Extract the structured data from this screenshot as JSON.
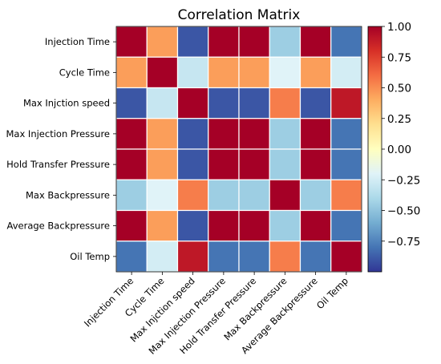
{
  "chart_data": {
    "type": "heatmap",
    "title": "Correlation Matrix",
    "labels": [
      "Injection Time",
      "Cycle Time",
      "Max Injction speed",
      "Max Injection Pressure",
      "Hold Transfer Pressure",
      "Max Backpressure",
      "Average Backpressure",
      "Oil Temp"
    ],
    "matrix": [
      [
        1.0,
        0.45,
        -0.9,
        1.0,
        1.0,
        -0.45,
        1.0,
        -0.8
      ],
      [
        0.45,
        1.0,
        -0.3,
        0.45,
        0.45,
        -0.2,
        0.45,
        -0.25
      ],
      [
        -0.9,
        -0.3,
        1.0,
        -0.9,
        -0.9,
        0.55,
        -0.9,
        0.9
      ],
      [
        1.0,
        0.45,
        -0.9,
        1.0,
        1.0,
        -0.45,
        1.0,
        -0.8
      ],
      [
        1.0,
        0.45,
        -0.9,
        1.0,
        1.0,
        -0.45,
        1.0,
        -0.8
      ],
      [
        -0.45,
        -0.2,
        0.55,
        -0.45,
        -0.45,
        1.0,
        -0.45,
        0.55
      ],
      [
        1.0,
        0.45,
        -0.9,
        1.0,
        1.0,
        -0.45,
        1.0,
        -0.8
      ],
      [
        -0.8,
        -0.25,
        0.9,
        -0.8,
        -0.8,
        0.55,
        -0.8,
        1.0
      ]
    ],
    "colorbar": {
      "colormap": "RdYlBu_r",
      "range": [
        -1.0,
        1.0
      ],
      "ticks": [
        1.0,
        0.75,
        0.5,
        0.25,
        0.0,
        -0.25,
        -0.5,
        -0.75
      ],
      "tick_labels": [
        "1.00",
        "0.75",
        "0.50",
        "0.25",
        "0.00",
        "−0.25",
        "−0.50",
        "−0.75"
      ]
    },
    "grid": true
  }
}
